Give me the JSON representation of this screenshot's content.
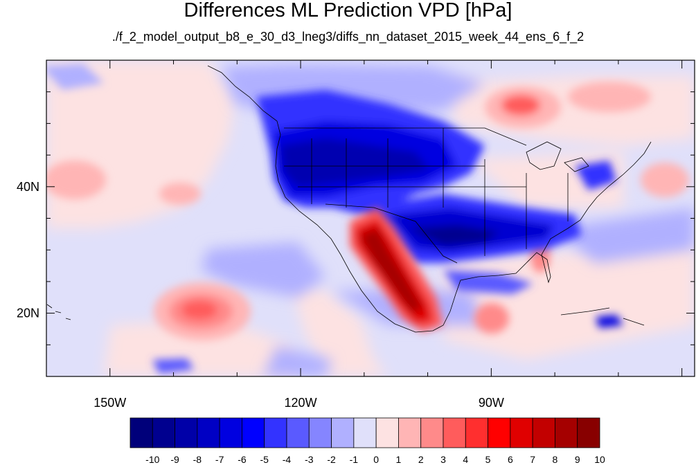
{
  "title": "Differences ML Prediction VPD [hPa]",
  "subtitle": "./f_2_model_output_b8_e_30_d3_lneg3/diffs_nn_dataset_2015_week_44_ens_6_f_2",
  "map": {
    "projection": "cylindrical-equidistant",
    "lon_range": [
      -160,
      -58
    ],
    "lat_range": [
      10,
      60
    ],
    "lon_labels": [
      {
        "lon": -150,
        "text": "150W"
      },
      {
        "lon": -120,
        "text": "120W"
      },
      {
        "lon": -90,
        "text": "90W"
      }
    ],
    "lat_labels": [
      {
        "lat": 40,
        "text": "40N"
      },
      {
        "lat": 20,
        "text": "20N"
      }
    ]
  },
  "colorbar": {
    "ticks": [
      "-10",
      "-9",
      "-8",
      "-7",
      "-6",
      "-5",
      "-4",
      "-3",
      "-2",
      "-1",
      "0",
      "1",
      "2",
      "3",
      "4",
      "5",
      "6",
      "7",
      "8",
      "9",
      "10"
    ],
    "colors": [
      "#00007a",
      "#00008f",
      "#0000a8",
      "#0000c4",
      "#0000e0",
      "#0000ff",
      "#3333ff",
      "#5a5aff",
      "#8585ff",
      "#b0b0ff",
      "#e0e0fa",
      "#fde2e2",
      "#ffb5b5",
      "#ff8a8a",
      "#ff5c5c",
      "#ff2f2f",
      "#ff0000",
      "#e00000",
      "#c20000",
      "#a50000",
      "#880000"
    ]
  }
}
